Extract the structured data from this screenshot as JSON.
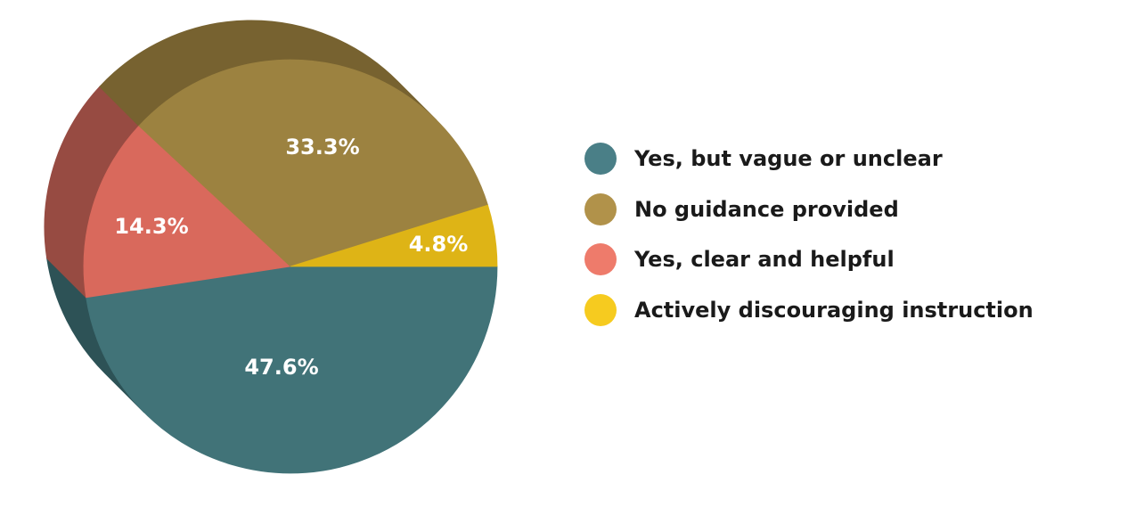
{
  "chart_data": {
    "type": "pie",
    "title": "",
    "legend_position": "right",
    "slices": [
      {
        "label": "Yes, but vague or unclear",
        "value": 47.6,
        "display": "47.6%",
        "color": "#417378",
        "side_color": "#2d5256"
      },
      {
        "label": "Yes, clear and helpful",
        "value": 14.3,
        "display": "14.3%",
        "color": "#d9695c",
        "side_color": "#974b42"
      },
      {
        "label": "No guidance provided",
        "value": 33.3,
        "display": "33.3%",
        "color": "#9c8240",
        "side_color": "#776230"
      },
      {
        "label": "Actively discouraging instruction",
        "value": 4.8,
        "display": "4.8%",
        "color": "#deb416",
        "side_color": "#a88a14"
      }
    ]
  },
  "legend": {
    "items": [
      {
        "label": "Yes, but vague or unclear",
        "color": "#4a7f87"
      },
      {
        "label": "No guidance provided",
        "color": "#b1924a"
      },
      {
        "label": "Yes, clear and helpful",
        "color": "#ee7b6b"
      },
      {
        "label": "Actively discouraging instruction",
        "color": "#f6cb1f"
      }
    ]
  }
}
